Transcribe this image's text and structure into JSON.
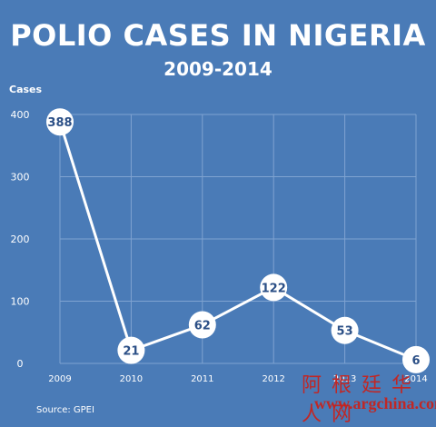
{
  "title": "POLIO CASES IN NIGERIA",
  "subtitle": "2009-2014",
  "source": "Source: GPEI",
  "watermark": {
    "line1": "阿 根 廷 华 人 网",
    "line2": "www.argchina.com"
  },
  "colors": {
    "background": "#4a7bb7",
    "grid": "#7fa3d1",
    "line": "#ffffff",
    "label_text": "#2b4f86",
    "watermark": "#c7231e"
  },
  "chart_data": {
    "type": "line",
    "title": "POLIO CASES IN NIGERIA",
    "subtitle": "2009-2014",
    "ylabel": "Cases",
    "xlabel": "",
    "x": [
      "2009",
      "2010",
      "2011",
      "2012",
      "2013",
      "2014"
    ],
    "series": [
      {
        "values": [
          388,
          21,
          62,
          122,
          53,
          6
        ]
      }
    ],
    "yticks": [
      0,
      100,
      200,
      300,
      400
    ],
    "ylim": [
      0,
      400
    ],
    "grid": true,
    "data_labels": true
  }
}
